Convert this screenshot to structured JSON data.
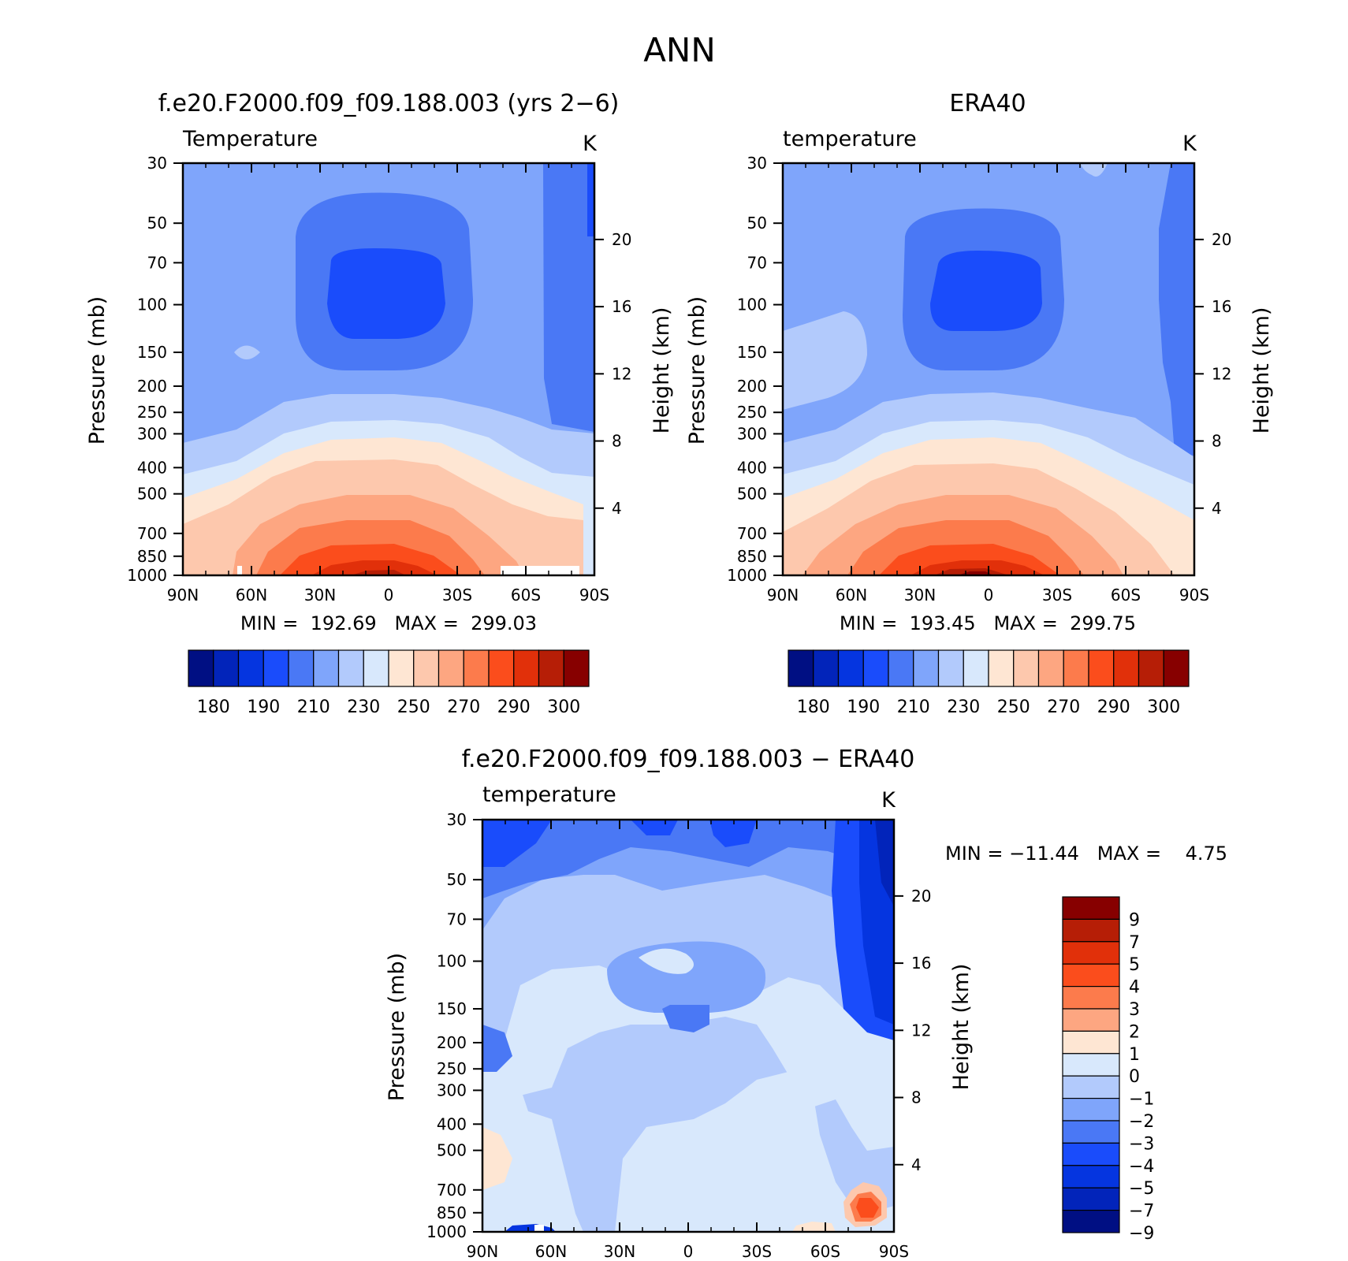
{
  "page_title": "ANN",
  "chart_data": [
    {
      "type": "heatmap",
      "title": "f.e20.F2000.f09_f09.188.003 (yrs 2−6)",
      "subtitle": "Temperature",
      "units": "K",
      "xlabel": "",
      "ylabel": "Pressure (mb)",
      "y2label": "Height (km)",
      "x_ticks": [
        "90N",
        "60N",
        "30N",
        "0",
        "30S",
        "60S",
        "90S"
      ],
      "y_ticks": [
        30,
        50,
        70,
        100,
        150,
        200,
        250,
        300,
        400,
        500,
        700,
        850,
        1000
      ],
      "y2_ticks": [
        20,
        16,
        12,
        8,
        4
      ],
      "stats_text": "MIN =  192.69   MAX =  299.03",
      "colorbar": {
        "orientation": "horizontal",
        "colors": [
          "#000f83",
          "#0224ba",
          "#0535e0",
          "#1a4cfb",
          "#4a78f5",
          "#7fa5fb",
          "#b2cafc",
          "#d8e8fc",
          "#fee6d3",
          "#fdc8ad",
          "#fda681",
          "#fc7b4c",
          "#fb4d1c",
          "#e1300a",
          "#b61e06",
          "#870000"
        ],
        "labels": [
          "180",
          "190",
          "210",
          "230",
          "250",
          "270",
          "290",
          "300"
        ]
      }
    },
    {
      "type": "heatmap",
      "title": "ERA40",
      "subtitle": "temperature",
      "units": "K",
      "xlabel": "",
      "ylabel": "Pressure (mb)",
      "y2label": "Height (km)",
      "x_ticks": [
        "90N",
        "60N",
        "30N",
        "0",
        "30S",
        "60S",
        "90S"
      ],
      "y_ticks": [
        30,
        50,
        70,
        100,
        150,
        200,
        250,
        300,
        400,
        500,
        700,
        850,
        1000
      ],
      "y2_ticks": [
        20,
        16,
        12,
        8,
        4
      ],
      "stats_text": "MIN =  193.45   MAX =  299.75",
      "colorbar": {
        "orientation": "horizontal",
        "colors": [
          "#000f83",
          "#0224ba",
          "#0535e0",
          "#1a4cfb",
          "#4a78f5",
          "#7fa5fb",
          "#b2cafc",
          "#d8e8fc",
          "#fee6d3",
          "#fdc8ad",
          "#fda681",
          "#fc7b4c",
          "#fb4d1c",
          "#e1300a",
          "#b61e06",
          "#870000"
        ],
        "labels": [
          "180",
          "190",
          "210",
          "230",
          "250",
          "270",
          "290",
          "300"
        ]
      }
    },
    {
      "type": "heatmap",
      "title": "f.e20.F2000.f09_f09.188.003 − ERA40",
      "subtitle": "temperature",
      "units": "K",
      "xlabel": "",
      "ylabel": "Pressure (mb)",
      "y2label": "Height (km)",
      "x_ticks": [
        "90N",
        "60N",
        "30N",
        "0",
        "30S",
        "60S",
        "90S"
      ],
      "y_ticks": [
        30,
        50,
        70,
        100,
        150,
        200,
        250,
        300,
        400,
        500,
        700,
        850,
        1000
      ],
      "y2_ticks": [
        20,
        16,
        12,
        8,
        4
      ],
      "stats_text": "MIN = −11.44   MAX =    4.75",
      "colorbar": {
        "orientation": "vertical",
        "colors": [
          "#870000",
          "#b61e06",
          "#e1300a",
          "#fb4d1c",
          "#fc7b4c",
          "#fda681",
          "#fee6d3",
          "#d8e8fc",
          "#b2cafc",
          "#7fa5fb",
          "#4a78f5",
          "#1a4cfb",
          "#0535e0",
          "#0224ba",
          "#000f83"
        ],
        "labels": [
          "9",
          "7",
          "5",
          "4",
          "3",
          "2",
          "1",
          "0",
          "−1",
          "−2",
          "−3",
          "−4",
          "−5",
          "−7",
          "−9"
        ]
      }
    }
  ]
}
